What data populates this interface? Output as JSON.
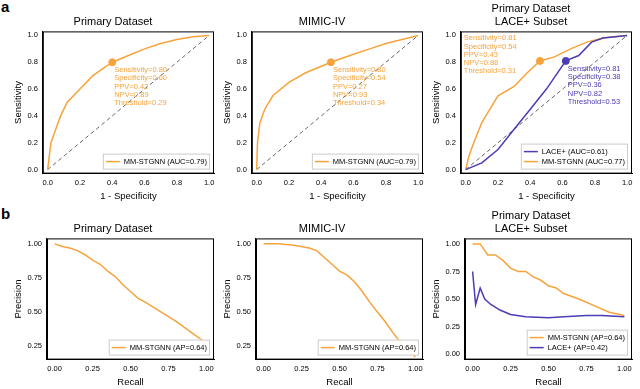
{
  "panel_labels": [
    "a",
    "b"
  ],
  "chart_data": [
    {
      "type": "line",
      "title": "Primary Dataset",
      "x_label": "1 - Specificity",
      "y_label": "Sensitivity",
      "xlim": [
        -0.03,
        1.03
      ],
      "ylim": [
        -0.03,
        1.03
      ],
      "xticks": [
        {
          "value": 0,
          "label": "0.0"
        },
        0.2,
        0.4,
        0.6,
        0.8,
        {
          "value": 1,
          "label": "1.0"
        }
      ],
      "yticks": [
        {
          "value": 0,
          "label": "0.0"
        },
        0.2,
        0.4,
        0.6,
        0.8,
        {
          "value": 1,
          "label": "1.0"
        }
      ],
      "grid": false,
      "legend": "lower right",
      "series": [
        {
          "name": "MM-STGNN (AUC=0.79)",
          "color": "#f7a33c",
          "x": [
            0,
            0.01,
            0.02,
            0.05,
            0.08,
            0.12,
            0.2,
            0.28,
            0.4,
            0.5,
            0.6,
            0.7,
            0.8,
            0.9,
            1
          ],
          "values": [
            0,
            0.1,
            0.2,
            0.3,
            0.4,
            0.5,
            0.6,
            0.7,
            0.8,
            0.85,
            0.9,
            0.94,
            0.97,
            0.99,
            1
          ]
        },
        {
          "color": "#666666",
          "line_style": "dashed",
          "x": [
            0,
            1
          ],
          "values": [
            0,
            1
          ]
        }
      ],
      "annotations": [
        {
          "x": 0.4,
          "y": 0.8,
          "color": "#f7a33c",
          "marker": "circle",
          "text": [
            "Sensitivity=0.80",
            "Specificity=0.60",
            "PPV=0.42",
            "NPV=0.89",
            "Threshold=0.29"
          ]
        }
      ]
    },
    {
      "type": "line",
      "title": "MIMIC-IV",
      "x_label": "1 - Specificity",
      "y_label": "Sensitivity",
      "xlim": [
        -0.03,
        1.03
      ],
      "ylim": [
        -0.03,
        1.03
      ],
      "xticks": [
        {
          "value": 0,
          "label": "0.0"
        },
        0.2,
        0.4,
        0.6,
        0.8,
        {
          "value": 1,
          "label": "1.0"
        }
      ],
      "yticks": [
        {
          "value": 0,
          "label": "0.0"
        },
        0.2,
        0.4,
        0.6,
        0.8,
        {
          "value": 1,
          "label": "1.0"
        }
      ],
      "grid": false,
      "legend": "lower right",
      "series": [
        {
          "name": "MM-STGNN (AUC=0.79)",
          "color": "#f7a33c",
          "x": [
            0,
            0.005,
            0.02,
            0.05,
            0.1,
            0.2,
            0.3,
            0.46,
            0.6,
            0.7,
            0.8,
            0.9,
            1
          ],
          "values": [
            0,
            0.2,
            0.35,
            0.45,
            0.55,
            0.65,
            0.72,
            0.8,
            0.86,
            0.9,
            0.94,
            0.97,
            1
          ]
        },
        {
          "color": "#666666",
          "line_style": "dashed",
          "x": [
            0,
            1
          ],
          "values": [
            0,
            1
          ]
        }
      ],
      "annotations": [
        {
          "x": 0.46,
          "y": 0.8,
          "color": "#f7a33c",
          "marker": "circle",
          "text": [
            "Sensitivity=0.80",
            "Specificity=0.54",
            "PPV=0.27",
            "NPV=0.93",
            "Threshold=0.34"
          ]
        }
      ]
    },
    {
      "type": "line",
      "title": [
        "Primary Dataset",
        "LACE+ Subset"
      ],
      "x_label": "1 - Specificity",
      "y_label": "Sensitivity",
      "xlim": [
        -0.03,
        1.03
      ],
      "ylim": [
        -0.03,
        1.03
      ],
      "xticks": [
        {
          "value": 0,
          "label": "0.0"
        },
        0.2,
        0.4,
        0.6,
        0.8,
        {
          "value": 1,
          "label": "1.0"
        }
      ],
      "yticks": [
        {
          "value": 0,
          "label": "0.0"
        },
        0.2,
        0.4,
        0.6,
        0.8,
        {
          "value": 1,
          "label": "1.0"
        }
      ],
      "grid": false,
      "legend": "lower right",
      "series": [
        {
          "name": "LACE+ (AUC=0.61)",
          "color": "#4a3db5",
          "x": [
            0,
            0.1,
            0.2,
            0.3,
            0.4,
            0.5,
            0.62,
            0.7,
            0.78,
            0.85,
            1
          ],
          "values": [
            0,
            0.05,
            0.15,
            0.3,
            0.45,
            0.6,
            0.81,
            0.85,
            0.95,
            0.98,
            1
          ]
        },
        {
          "name": "MM-STGNN (AUC=0.77)",
          "color": "#f7a33c",
          "x": [
            0,
            0.02,
            0.05,
            0.1,
            0.15,
            0.2,
            0.3,
            0.38,
            0.46,
            0.55,
            0.65,
            0.75,
            0.85,
            1
          ],
          "values": [
            0,
            0.1,
            0.2,
            0.35,
            0.45,
            0.55,
            0.62,
            0.72,
            0.81,
            0.84,
            0.9,
            0.95,
            0.98,
            1
          ]
        },
        {
          "color": "#666666",
          "line_style": "dashed",
          "x": [
            0,
            1
          ],
          "values": [
            0,
            1
          ]
        }
      ],
      "annotations": [
        {
          "x": 0.46,
          "y": 0.81,
          "color": "#f7a33c",
          "marker": "circle",
          "text": [
            "Sensitivity=0.81",
            "Specificity=0.54",
            "PPV=0.43",
            "NPV=0.88",
            "Threshold=0.31"
          ]
        },
        {
          "x": 0.62,
          "y": 0.81,
          "color": "#4a3db5",
          "marker": "circle",
          "text": [
            "Sensitivity=0.81",
            "Specificity=0.38",
            "PPV=0.36",
            "NPV=0.82",
            "Threshold=0.53"
          ]
        }
      ]
    },
    {
      "type": "line",
      "title": "Primary Dataset",
      "x_label": "Recall",
      "y_label": "Precision",
      "xlim": [
        -0.05,
        1.05
      ],
      "ylim": [
        0.15,
        1.04
      ],
      "xticks": [
        {
          "value": 0,
          "label": "0.00"
        },
        0.25,
        {
          "value": 0.5,
          "label": "0.50"
        },
        0.75,
        {
          "value": 1,
          "label": "1.00"
        }
      ],
      "yticks": [
        0.25,
        {
          "value": 0.5,
          "label": "0.50"
        },
        0.75,
        {
          "value": 1,
          "label": "1.00"
        }
      ],
      "grid": false,
      "legend": "lower right",
      "series": [
        {
          "name": "MM-STGNN (AP=0.64)",
          "color": "#f7a33c",
          "x": [
            0,
            0.05,
            0.1,
            0.15,
            0.2,
            0.25,
            0.3,
            0.35,
            0.4,
            0.45,
            0.5,
            0.55,
            0.6,
            0.7,
            0.8,
            0.9,
            1
          ],
          "values": [
            1,
            0.98,
            0.97,
            0.95,
            0.92,
            0.88,
            0.85,
            0.8,
            0.76,
            0.7,
            0.65,
            0.6,
            0.57,
            0.5,
            0.43,
            0.35,
            0.27
          ]
        }
      ]
    },
    {
      "type": "line",
      "title": "MIMIC-IV",
      "x_label": "Recall",
      "y_label": "Precision",
      "xlim": [
        -0.05,
        1.05
      ],
      "ylim": [
        0.15,
        1.04
      ],
      "xticks": [
        {
          "value": 0,
          "label": "0.00"
        },
        0.25,
        {
          "value": 0.5,
          "label": "0.50"
        },
        0.75,
        {
          "value": 1,
          "label": "1.00"
        }
      ],
      "yticks": [
        0.25,
        {
          "value": 0.5,
          "label": "0.50"
        },
        0.75,
        {
          "value": 1,
          "label": "1.00"
        }
      ],
      "grid": false,
      "legend": "lower right",
      "series": [
        {
          "name": "MM-STGNN (AP=0.64)",
          "color": "#f7a33c",
          "x": [
            0,
            0.1,
            0.2,
            0.3,
            0.35,
            0.4,
            0.45,
            0.5,
            0.55,
            0.6,
            0.65,
            0.7,
            0.75,
            0.8,
            0.85,
            0.9,
            0.95,
            1
          ],
          "values": [
            1,
            1,
            0.99,
            0.97,
            0.95,
            0.9,
            0.85,
            0.8,
            0.77,
            0.72,
            0.65,
            0.57,
            0.5,
            0.43,
            0.35,
            0.28,
            0.22,
            0.17
          ]
        }
      ]
    },
    {
      "type": "line",
      "title": [
        "Primary Dataset",
        "LACE+ Subset"
      ],
      "x_label": "Recall",
      "y_label": "Precision",
      "xlim": [
        -0.05,
        1.05
      ],
      "ylim": [
        -0.05,
        1.05
      ],
      "xticks": [
        {
          "value": 0,
          "label": "0.00"
        },
        0.25,
        {
          "value": 0.5,
          "label": "0.50"
        },
        0.75,
        {
          "value": 1,
          "label": "1.00"
        }
      ],
      "yticks": [
        {
          "value": 0,
          "label": "0.00"
        },
        0.25,
        {
          "value": 0.5,
          "label": "0.50"
        },
        0.75,
        {
          "value": 1,
          "label": "1.00"
        }
      ],
      "grid": false,
      "legend": "lower right",
      "series": [
        {
          "name": "MM-STGNN (AP=0.64)",
          "color": "#f7a33c",
          "x": [
            0,
            0.05,
            0.1,
            0.15,
            0.2,
            0.25,
            0.3,
            0.35,
            0.4,
            0.45,
            0.5,
            0.55,
            0.6,
            0.7,
            0.8,
            0.9,
            1
          ],
          "values": [
            1,
            1,
            0.9,
            0.9,
            0.85,
            0.78,
            0.75,
            0.75,
            0.7,
            0.67,
            0.62,
            0.6,
            0.55,
            0.5,
            0.44,
            0.38,
            0.35
          ]
        },
        {
          "name": "LACE+ (AP=0.42)",
          "color": "#4a3db5",
          "x": [
            0,
            0.02,
            0.05,
            0.08,
            0.12,
            0.18,
            0.25,
            0.35,
            0.5,
            0.6,
            0.75,
            0.85,
            1
          ],
          "values": [
            0.75,
            0.45,
            0.6,
            0.5,
            0.45,
            0.4,
            0.36,
            0.34,
            0.33,
            0.34,
            0.35,
            0.35,
            0.34
          ]
        }
      ]
    }
  ]
}
